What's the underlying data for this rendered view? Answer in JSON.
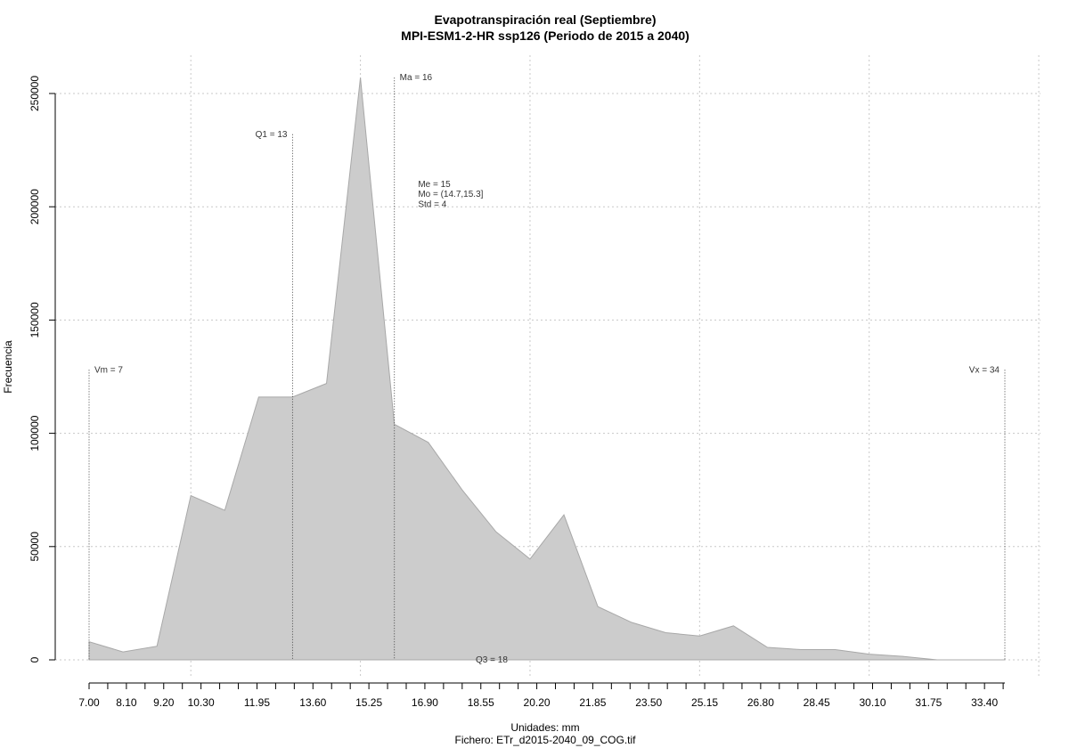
{
  "chart_data": {
    "type": "area",
    "title": "Evapotranspiración real (Septiembre)",
    "subtitle": "MPI-ESM1-2-HR ssp126 (Periodo de 2015 a 2040)",
    "xlabel": "Unidades: mm",
    "caption": "Fichero: ETr_d2015-2040_09_COG.tif",
    "ylabel": "Frecuencia",
    "xlim": [
      7.0,
      34.0
    ],
    "ylim": [
      0,
      250000
    ],
    "x_tick_labels": [
      "7.00",
      "8.10",
      "9.20",
      "10.30",
      "11.95",
      "13.60",
      "15.25",
      "16.90",
      "18.55",
      "20.20",
      "21.85",
      "23.50",
      "25.15",
      "26.80",
      "28.45",
      "30.10",
      "31.75",
      "33.40"
    ],
    "x_tick_values": [
      7.0,
      8.1,
      9.2,
      10.3,
      11.95,
      13.6,
      15.25,
      16.9,
      18.55,
      20.2,
      21.85,
      23.5,
      25.15,
      26.8,
      28.45,
      30.1,
      31.75,
      33.4
    ],
    "y_tick_labels": [
      "0",
      "50000",
      "100000",
      "150000",
      "200000",
      "250000"
    ],
    "y_tick_values": [
      0,
      50000,
      100000,
      150000,
      200000,
      250000
    ],
    "series": [
      {
        "x": [
          7.0,
          8.0,
          9.0,
          10.0,
          11.0,
          12.0,
          13.0,
          14.0,
          15.0,
          16.0,
          17.0,
          18.0,
          19.0,
          20.0,
          21.0,
          22.0,
          23.0,
          24.0,
          25.0,
          26.0,
          27.0,
          28.0,
          29.0,
          30.0,
          31.0,
          32.0,
          33.0,
          34.0
        ],
        "values": [
          8000,
          3500,
          6000,
          72500,
          66000,
          116000,
          116000,
          122000,
          257000,
          104000,
          96000,
          75000,
          56500,
          44500,
          64000,
          23500,
          16500,
          12000,
          10500,
          15000,
          5500,
          4500,
          4500,
          2500,
          1500,
          0,
          0,
          0
        ],
        "color": "#cccccc"
      }
    ],
    "stat_lines": [
      {
        "label": "Vm = 7",
        "x": 7.0,
        "y_top": 128000,
        "label_side": "right"
      },
      {
        "label": "Q1 = 13",
        "x": 13.0,
        "y_top": 232000,
        "label_side": "left"
      },
      {
        "label": "Ma = 16",
        "x": 16.0,
        "y_top": 257000,
        "label_side": "right"
      },
      {
        "label": "Vx = 34",
        "x": 34.0,
        "y_top": 128000,
        "label_side": "left"
      }
    ],
    "annotations": [
      {
        "text": "Me = 15",
        "x": 16.7,
        "y": 210000
      },
      {
        "text": "Mo = (14.7,15.3]",
        "x": 16.7,
        "y": 205500
      },
      {
        "text": "Std = 4",
        "x": 16.7,
        "y": 201000
      },
      {
        "text": "Q3 = 18",
        "x": 18.4,
        "y": 0
      }
    ],
    "grid": true,
    "legend": "none"
  }
}
